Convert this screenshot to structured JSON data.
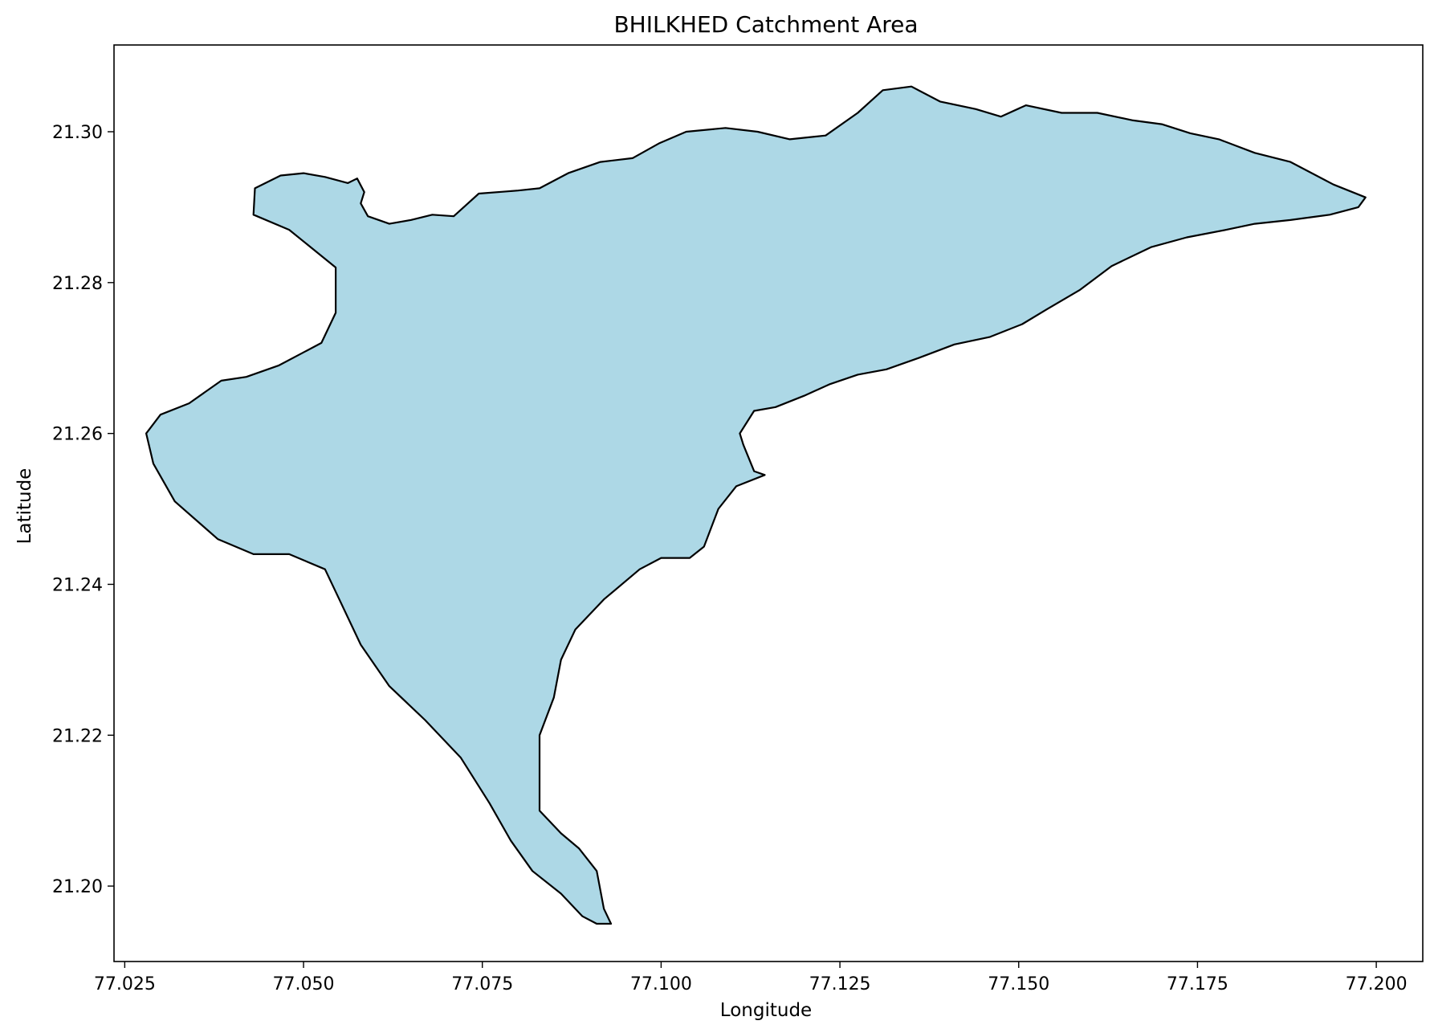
{
  "chart_data": {
    "type": "map",
    "title": "BHILKHED Catchment Area",
    "xlabel": "Longitude",
    "ylabel": "Latitude",
    "xlim": [
      77.0235,
      77.2065
    ],
    "ylim": [
      21.19,
      21.3115
    ],
    "xticks": [
      77.025,
      77.05,
      77.075,
      77.1,
      77.125,
      77.15,
      77.175,
      77.2
    ],
    "xtick_labels": [
      "77.025",
      "77.050",
      "77.075",
      "77.100",
      "77.125",
      "77.150",
      "77.175",
      "77.200"
    ],
    "yticks": [
      21.2,
      21.22,
      21.24,
      21.26,
      21.28,
      21.3
    ],
    "ytick_labels": [
      "21.20",
      "21.22",
      "21.24",
      "21.26",
      "21.28",
      "21.30"
    ],
    "grid": false,
    "legend": "none",
    "polygon": {
      "name": "BHILKHED",
      "fill_color": "#add8e6",
      "edge_color": "#000000",
      "boundary": [
        [
          77.0432,
          21.2925
        ],
        [
          77.0468,
          21.2942
        ],
        [
          77.05,
          21.2945
        ],
        [
          77.053,
          21.294
        ],
        [
          77.0562,
          21.2932
        ],
        [
          77.0575,
          21.2938
        ],
        [
          77.0585,
          21.292
        ],
        [
          77.058,
          21.2905
        ],
        [
          77.059,
          21.2888
        ],
        [
          77.062,
          21.2878
        ],
        [
          77.065,
          21.2883
        ],
        [
          77.068,
          21.289
        ],
        [
          77.071,
          21.2888
        ],
        [
          77.0745,
          21.2918
        ],
        [
          77.08,
          21.2922
        ],
        [
          77.083,
          21.2925
        ],
        [
          77.087,
          21.2945
        ],
        [
          77.0915,
          21.296
        ],
        [
          77.096,
          21.2965
        ],
        [
          77.0998,
          21.2985
        ],
        [
          77.1035,
          21.3
        ],
        [
          77.109,
          21.3005
        ],
        [
          77.1135,
          21.3
        ],
        [
          77.118,
          21.299
        ],
        [
          77.123,
          21.2995
        ],
        [
          77.1275,
          21.3025
        ],
        [
          77.131,
          21.3055
        ],
        [
          77.135,
          21.306
        ],
        [
          77.139,
          21.304
        ],
        [
          77.144,
          21.303
        ],
        [
          77.1475,
          21.302
        ],
        [
          77.151,
          21.3035
        ],
        [
          77.156,
          21.3025
        ],
        [
          77.161,
          21.3025
        ],
        [
          77.166,
          21.3015
        ],
        [
          77.17,
          21.301
        ],
        [
          77.174,
          21.2998
        ],
        [
          77.178,
          21.299
        ],
        [
          77.183,
          21.2972
        ],
        [
          77.188,
          21.296
        ],
        [
          77.194,
          21.293
        ],
        [
          77.1985,
          21.2913
        ],
        [
          77.1975,
          21.29
        ],
        [
          77.1935,
          21.289
        ],
        [
          77.188,
          21.2883
        ],
        [
          77.183,
          21.2878
        ],
        [
          77.179,
          21.287
        ],
        [
          77.1735,
          21.286
        ],
        [
          77.1685,
          21.2847
        ],
        [
          77.163,
          21.2822
        ],
        [
          77.1585,
          21.279
        ],
        [
          77.154,
          21.2765
        ],
        [
          77.1505,
          21.2745
        ],
        [
          77.146,
          21.2728
        ],
        [
          77.141,
          21.2718
        ],
        [
          77.136,
          21.27
        ],
        [
          77.1315,
          21.2685
        ],
        [
          77.1275,
          21.2678
        ],
        [
          77.1235,
          21.2665
        ],
        [
          77.12,
          21.265
        ],
        [
          77.116,
          21.2635
        ],
        [
          77.113,
          21.263
        ],
        [
          77.111,
          21.26
        ],
        [
          77.1115,
          21.2585
        ],
        [
          77.113,
          21.255
        ],
        [
          77.1145,
          21.2545
        ],
        [
          77.1105,
          21.253
        ],
        [
          77.108,
          21.25
        ],
        [
          77.106,
          21.245
        ],
        [
          77.104,
          21.2435
        ],
        [
          77.1,
          21.2435
        ],
        [
          77.097,
          21.242
        ],
        [
          77.092,
          21.238
        ],
        [
          77.088,
          21.234
        ],
        [
          77.086,
          21.23
        ],
        [
          77.085,
          21.225
        ],
        [
          77.083,
          21.22
        ],
        [
          77.083,
          21.215
        ],
        [
          77.083,
          21.21
        ],
        [
          77.086,
          21.207
        ],
        [
          77.0885,
          21.205
        ],
        [
          77.091,
          21.202
        ],
        [
          77.092,
          21.197
        ],
        [
          77.093,
          21.195
        ],
        [
          77.091,
          21.195
        ],
        [
          77.089,
          21.196
        ],
        [
          77.086,
          21.199
        ],
        [
          77.082,
          21.202
        ],
        [
          77.079,
          21.206
        ],
        [
          77.076,
          21.211
        ],
        [
          77.072,
          21.217
        ],
        [
          77.067,
          21.222
        ],
        [
          77.062,
          21.2265
        ],
        [
          77.058,
          21.232
        ],
        [
          77.055,
          21.238
        ],
        [
          77.053,
          21.242
        ],
        [
          77.048,
          21.244
        ],
        [
          77.043,
          21.244
        ],
        [
          77.038,
          21.246
        ],
        [
          77.032,
          21.251
        ],
        [
          77.029,
          21.256
        ],
        [
          77.028,
          21.26
        ],
        [
          77.03,
          21.2625
        ],
        [
          77.034,
          21.264
        ],
        [
          77.0385,
          21.267
        ],
        [
          77.042,
          21.2675
        ],
        [
          77.0465,
          21.269
        ],
        [
          77.0525,
          21.272
        ],
        [
          77.0545,
          21.276
        ],
        [
          77.0545,
          21.282
        ],
        [
          77.048,
          21.287
        ],
        [
          77.043,
          21.289
        ]
      ]
    }
  }
}
